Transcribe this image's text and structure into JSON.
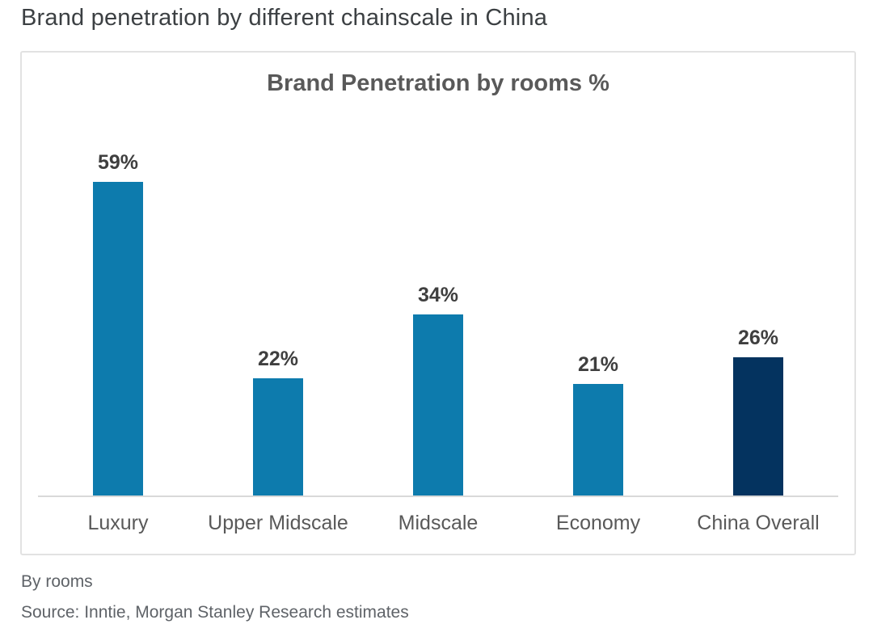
{
  "page": {
    "title": "Brand penetration by different chainscale in China",
    "footnote": "By rooms",
    "source": "Source: Inntie, Morgan Stanley Research estimates"
  },
  "chart_data": {
    "type": "bar",
    "title": "Brand Penetration by rooms %",
    "categories": [
      "Luxury",
      "Upper Midscale",
      "Midscale",
      "Economy",
      "China Overall"
    ],
    "values": [
      59,
      22,
      34,
      21,
      26
    ],
    "data_labels": [
      "59%",
      "22%",
      "34%",
      "21%",
      "26%"
    ],
    "xlabel": "",
    "ylabel": "",
    "ylim": [
      0,
      65
    ],
    "grid": false,
    "legend": false,
    "bar_colors": [
      "#0d7bad",
      "#0d7bad",
      "#0d7bad",
      "#0d7bad",
      "#04335f"
    ],
    "colors": {
      "bar_default": "#0d7bad",
      "bar_highlight": "#04335f",
      "axis_line": "#d9d9d9",
      "title_text": "#595959",
      "label_text": "#3f3f3f"
    }
  }
}
